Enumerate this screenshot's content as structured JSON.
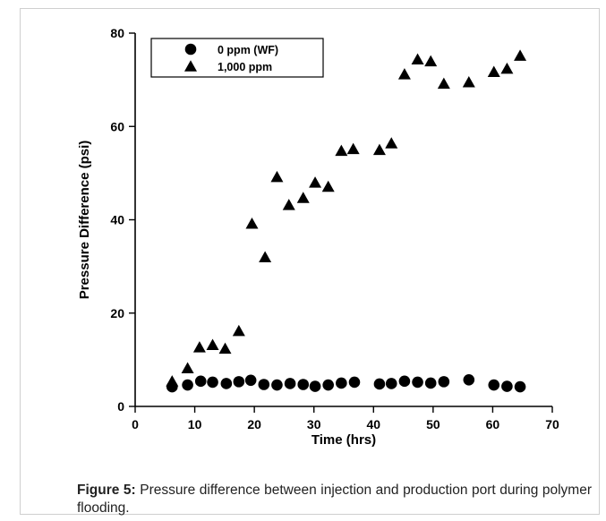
{
  "chart_data": {
    "type": "scatter",
    "xlabel": "Time (hrs)",
    "ylabel": "Pressure Difference (psi)",
    "xlim": [
      0,
      70
    ],
    "ylim": [
      0,
      80
    ],
    "xticks": [
      "0",
      "10",
      "20",
      "30",
      "40",
      "50",
      "60",
      "70"
    ],
    "yticks": [
      "0",
      "20",
      "40",
      "60",
      "80"
    ],
    "grid": false,
    "legend_position": "top-left",
    "series": [
      {
        "name": "0 ppm (WF)",
        "marker": "circle",
        "color": "#000000",
        "points": [
          [
            6.2,
            4.2
          ],
          [
            8.8,
            4.6
          ],
          [
            11,
            5.4
          ],
          [
            13,
            5.2
          ],
          [
            15.3,
            4.9
          ],
          [
            17.4,
            5.3
          ],
          [
            19.4,
            5.6
          ],
          [
            21.6,
            4.7
          ],
          [
            23.8,
            4.6
          ],
          [
            26,
            4.9
          ],
          [
            28.2,
            4.7
          ],
          [
            30.2,
            4.3
          ],
          [
            32.4,
            4.6
          ],
          [
            34.6,
            5
          ],
          [
            36.8,
            5.2
          ],
          [
            41,
            4.8
          ],
          [
            43,
            4.9
          ],
          [
            45.2,
            5.4
          ],
          [
            47.4,
            5.2
          ],
          [
            49.6,
            5
          ],
          [
            51.8,
            5.3
          ],
          [
            56,
            5.7
          ],
          [
            60.2,
            4.6
          ],
          [
            62.4,
            4.3
          ],
          [
            64.6,
            4.2
          ]
        ]
      },
      {
        "name": "1,000 ppm",
        "marker": "triangle",
        "color": "#000000",
        "points": [
          [
            6.2,
            5.2
          ],
          [
            8.8,
            8
          ],
          [
            10.8,
            12.5
          ],
          [
            13,
            13
          ],
          [
            15.1,
            12.2
          ],
          [
            17.4,
            16
          ],
          [
            19.6,
            39
          ],
          [
            21.8,
            31.8
          ],
          [
            23.8,
            49
          ],
          [
            25.8,
            43
          ],
          [
            28.2,
            44.5
          ],
          [
            30.2,
            47.8
          ],
          [
            32.4,
            46.9
          ],
          [
            34.6,
            54.6
          ],
          [
            36.6,
            55
          ],
          [
            41,
            54.8
          ],
          [
            43,
            56.2
          ],
          [
            45.2,
            71
          ],
          [
            47.4,
            74.2
          ],
          [
            49.6,
            73.8
          ],
          [
            51.8,
            69
          ],
          [
            56,
            69.3
          ],
          [
            60.2,
            71.5
          ],
          [
            62.4,
            72.2
          ],
          [
            64.6,
            75
          ]
        ]
      }
    ]
  },
  "caption": {
    "label": "Figure 5:",
    "text": " Pressure difference between injection and production port during polymer flooding."
  }
}
